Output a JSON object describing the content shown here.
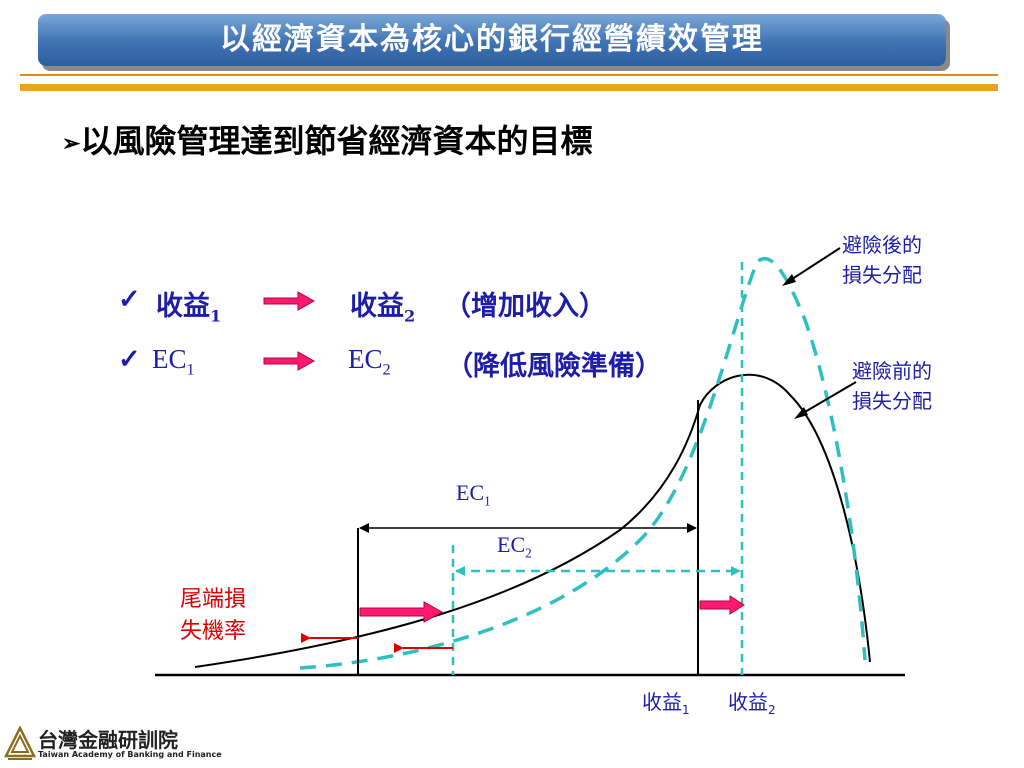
{
  "title": "以經濟資本為核心的銀行經營績效管理",
  "heading": "以風險管理達到節省經濟資本的目標",
  "bullets": [
    {
      "check": "✓",
      "from": "收益",
      "from_sub": "1",
      "to": "收益",
      "to_sub": "2",
      "note": "（增加收入）"
    },
    {
      "check": "✓",
      "from": "EC",
      "from_sub": "1",
      "to": "EC",
      "to_sub": "2",
      "note": "（降低風險準備）"
    }
  ],
  "diagram": {
    "after_label_line1": "避險後的",
    "after_label_line2": "損失分配",
    "before_label_line1": "避險前的",
    "before_label_line2": "損失分配",
    "ec1": "EC",
    "ec1_sub": "1",
    "ec2": "EC",
    "ec2_sub": "2",
    "tail_line1": "尾端損",
    "tail_line2": "失機率",
    "rev1": "收益",
    "rev1_sub": "1",
    "rev2": "收益",
    "rev2_sub": "2",
    "colors": {
      "ec2_dashed": "#2ebfc0",
      "tail": "#e00000",
      "arrow": "#f00060",
      "label": "#1d1da8"
    }
  },
  "logo": {
    "name": "台灣金融研訓院",
    "english": "Taiwan Academy of Banking and Finance"
  }
}
